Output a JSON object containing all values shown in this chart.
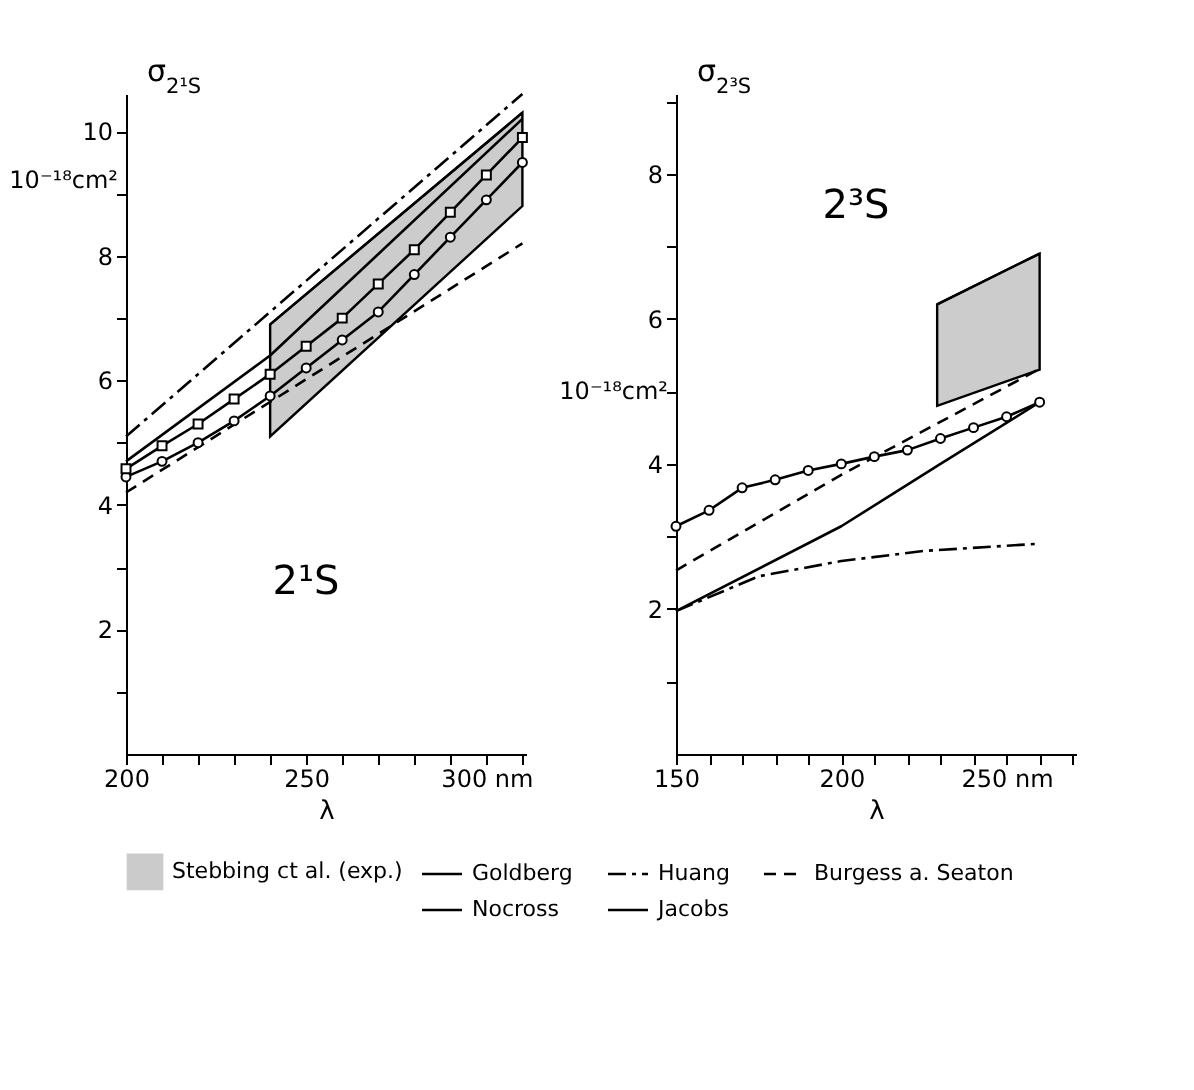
{
  "chart_data": [
    {
      "type": "line",
      "ylabel": "σ$_{2¹S}$",
      "xlabel": "λ",
      "xlim": [
        200,
        311
      ],
      "ylim": [
        0,
        10.6
      ],
      "grid": false,
      "legend": "bottom",
      "xticks": [
        200,
        {
          "value": 210,
          "label": null
        },
        {
          "value": 220,
          "label": null
        },
        {
          "value": 230,
          "label": null
        },
        {
          "value": 240,
          "label": null
        },
        250,
        {
          "value": 260,
          "label": null
        },
        {
          "value": 270,
          "label": null
        },
        {
          "value": 280,
          "label": null
        },
        {
          "value": 290,
          "label": null
        },
        {
          "value": 300,
          "label": "300 nm"
        },
        {
          "value": 310,
          "label": null
        }
      ],
      "yticks": [
        {
          "value": 1,
          "label": null
        },
        2,
        {
          "value": 3,
          "label": null
        },
        4,
        {
          "value": 5,
          "label": null
        },
        6,
        {
          "value": 7,
          "label": null
        },
        8,
        {
          "value": 9,
          "label": null
        },
        10
      ],
      "annotations": [
        "10⁻¹⁸cm²",
        "2¹S"
      ],
      "series": [
        {
          "name": "Stebbing ct al. (exp.)",
          "color": "#000000",
          "x": [
            240,
            310
          ],
          "values": [
            6.9,
            10.3
          ],
          "lower": [
            5.1,
            8.8
          ],
          "upper": [
            6.9,
            10.3
          ]
        },
        {
          "name": "Goldberg",
          "color": "#000000",
          "line_style": "solid",
          "marker": "none",
          "x": [
            200,
            240,
            310
          ],
          "values": [
            4.7,
            6.4,
            10.2
          ]
        },
        {
          "name": "Huang",
          "color": "#000000",
          "line_style": "dashdot",
          "marker": "none",
          "x": [
            200,
            310
          ],
          "values": [
            5.1,
            10.6
          ]
        },
        {
          "name": "Burgess a. Seaton",
          "color": "#000000",
          "line_style": "dashed",
          "marker": "none",
          "x": [
            200,
            310
          ],
          "values": [
            4.2,
            8.2
          ]
        },
        {
          "name": "Nocross",
          "color": "#000000",
          "line_style": "solid",
          "marker": "circle",
          "x": [
            200,
            210,
            220,
            230,
            240,
            250,
            260,
            270,
            280,
            290,
            300,
            310
          ],
          "values": [
            4.45,
            4.7,
            5.0,
            5.35,
            5.75,
            6.2,
            6.65,
            7.1,
            7.7,
            8.3,
            8.9,
            9.5
          ]
        },
        {
          "name": "Jacobs",
          "color": "#000000",
          "line_style": "solid",
          "marker": "square",
          "x": [
            200,
            210,
            220,
            230,
            240,
            250,
            260,
            270,
            280,
            290,
            300,
            310
          ],
          "values": [
            4.58,
            4.95,
            5.3,
            5.7,
            6.1,
            6.55,
            7.0,
            7.55,
            8.1,
            8.7,
            9.3,
            9.9
          ]
        }
      ]
    },
    {
      "type": "line",
      "ylabel": "σ$_{2³S}$",
      "xlabel": "λ",
      "xlim": [
        150,
        271
      ],
      "ylim": [
        0,
        9.1
      ],
      "grid": false,
      "legend": "bottom",
      "xticks": [
        150,
        {
          "value": 160,
          "label": null
        },
        {
          "value": 170,
          "label": null
        },
        {
          "value": 180,
          "label": null
        },
        {
          "value": 190,
          "label": null
        },
        200,
        {
          "value": 210,
          "label": null
        },
        {
          "value": 220,
          "label": null
        },
        {
          "value": 230,
          "label": null
        },
        {
          "value": 240,
          "label": null
        },
        {
          "value": 250,
          "label": "250 nm"
        },
        {
          "value": 260,
          "label": null
        },
        {
          "value": 270,
          "label": null
        }
      ],
      "yticks": [
        {
          "value": 1,
          "label": null
        },
        2,
        {
          "value": 3,
          "label": null
        },
        4,
        {
          "value": 5,
          "label": null
        },
        6,
        {
          "value": 7,
          "label": null
        },
        8,
        {
          "value": 9,
          "label": null
        }
      ],
      "annotations": [
        "10⁻¹⁸cm²",
        "2³S"
      ],
      "series": [
        {
          "name": "Stebbing ct al. (exp.)",
          "color": "#000000",
          "x": [
            229,
            260
          ],
          "values": [
            6.2,
            6.9
          ],
          "lower": [
            4.8,
            5.3
          ],
          "upper": [
            6.2,
            6.9
          ]
        },
        {
          "name": "Goldberg",
          "color": "#000000",
          "line_style": "solid",
          "marker": "none",
          "x": [
            150,
            200,
            230,
            260
          ],
          "values": [
            1.97,
            3.14,
            4.0,
            4.85
          ]
        },
        {
          "name": "Huang",
          "color": "#000000",
          "line_style": "dashdot",
          "marker": "none",
          "x": [
            150,
            175,
            200,
            225,
            260
          ],
          "values": [
            1.97,
            2.45,
            2.66,
            2.8,
            2.9
          ]
        },
        {
          "name": "Burgess a. Seaton",
          "color": "#000000",
          "line_style": "dashed",
          "marker": "none",
          "x": [
            150,
            200,
            260
          ],
          "values": [
            2.53,
            3.85,
            5.31
          ]
        },
        {
          "name": "Nocross",
          "color": "#000000",
          "line_style": "solid",
          "marker": "circle",
          "x": [
            150,
            160,
            170,
            180,
            190,
            200,
            210,
            220,
            230,
            240,
            250,
            260
          ],
          "values": [
            3.14,
            3.36,
            3.67,
            3.78,
            3.91,
            4.0,
            4.1,
            4.19,
            4.35,
            4.5,
            4.65,
            4.85
          ]
        }
      ]
    }
  ]
}
